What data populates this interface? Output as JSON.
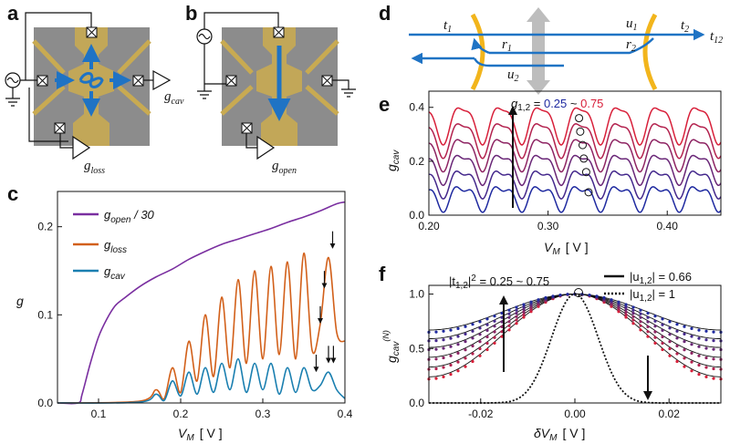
{
  "panel_labels": [
    "a",
    "b",
    "c",
    "d",
    "e",
    "f"
  ],
  "panel_a": {
    "label_cav": "g",
    "label_cav_sub": "cav",
    "label_loss": "g",
    "label_loss_sub": "loss"
  },
  "panel_b": {
    "label_open": "g",
    "label_open_sub": "open"
  },
  "panel_d": {
    "t1": "t",
    "t1_sub": "1",
    "t2": "t",
    "t2_sub": "2",
    "t12": "t",
    "t12_sub": "12",
    "r1": "r",
    "r1_sub": "1",
    "r2": "r",
    "r2_sub": "2",
    "u1": "u",
    "u1_sub": "1",
    "u2": "u",
    "u2_sub": "2"
  },
  "colors": {
    "purple": "#7a2fa0",
    "orange": "#d2601a",
    "teal": "#1a7fb0",
    "blue_low": "#1f2aa0",
    "red_high": "#d8203a",
    "gold": "#f2b51c",
    "arrow_blue": "#1f73c4",
    "chip_gray": "#8c8c8c",
    "gate_gold": "#c8aa52"
  },
  "chart_data": [
    {
      "panel": "c",
      "type": "line",
      "xlabel": "V",
      "xlabel_sub": "M",
      "xunit": "[ V ]",
      "ylabel": "g",
      "xlim": [
        0.05,
        0.4
      ],
      "ylim": [
        0,
        0.24
      ],
      "xticks": [
        "0.1",
        "0.2",
        "0.3",
        "0.4"
      ],
      "xtick_values": [
        0.1,
        0.2,
        0.3,
        0.4
      ],
      "yticks": [
        "0.0",
        "0.1",
        "0.2"
      ],
      "ytick_values": [
        0.0,
        0.1,
        0.2
      ],
      "legend_placement": "top-left",
      "series": [
        {
          "name": "g",
          "name_sub": "open",
          "name_suffix": " / 30",
          "color": "#7a2fa0",
          "x": [
            0.05,
            0.075,
            0.08,
            0.09,
            0.1,
            0.11,
            0.12,
            0.13,
            0.15,
            0.17,
            0.19,
            0.21,
            0.23,
            0.25,
            0.27,
            0.29,
            0.31,
            0.33,
            0.35,
            0.37,
            0.39,
            0.4
          ],
          "y": [
            0,
            0,
            0.01,
            0.045,
            0.075,
            0.095,
            0.11,
            0.118,
            0.132,
            0.143,
            0.152,
            0.163,
            0.172,
            0.18,
            0.186,
            0.192,
            0.198,
            0.205,
            0.211,
            0.218,
            0.226,
            0.228
          ]
        },
        {
          "name": "g",
          "name_sub": "loss",
          "name_suffix": "",
          "color": "#d2601a",
          "x": [
            0.05,
            0.15,
            0.17,
            0.18,
            0.19,
            0.2,
            0.21,
            0.22,
            0.23,
            0.24,
            0.25,
            0.26,
            0.27,
            0.28,
            0.29,
            0.3,
            0.31,
            0.32,
            0.33,
            0.34,
            0.35,
            0.36,
            0.37,
            0.38,
            0.39,
            0.4
          ],
          "y": [
            0,
            0.002,
            0.015,
            0.005,
            0.04,
            0.012,
            0.07,
            0.025,
            0.1,
            0.03,
            0.12,
            0.04,
            0.14,
            0.045,
            0.15,
            0.05,
            0.155,
            0.055,
            0.16,
            0.05,
            0.17,
            0.06,
            0.09,
            0.165,
            0.08,
            0.07
          ]
        },
        {
          "name": "g",
          "name_sub": "cav",
          "name_suffix": "",
          "color": "#1a7fb0",
          "x": [
            0.05,
            0.15,
            0.17,
            0.18,
            0.19,
            0.2,
            0.21,
            0.22,
            0.23,
            0.24,
            0.25,
            0.26,
            0.27,
            0.28,
            0.29,
            0.3,
            0.31,
            0.32,
            0.33,
            0.34,
            0.35,
            0.36,
            0.37,
            0.38,
            0.39,
            0.4
          ],
          "y": [
            0,
            0.001,
            0.01,
            0.003,
            0.025,
            0.008,
            0.035,
            0.01,
            0.04,
            0.012,
            0.045,
            0.015,
            0.05,
            0.012,
            0.045,
            0.015,
            0.045,
            0.01,
            0.04,
            0.012,
            0.04,
            0.015,
            0.02,
            0.035,
            0.015,
            0.005
          ]
        }
      ],
      "annotations": [
        {
          "type": "arrow",
          "x": 0.385,
          "y": 0.17
        },
        {
          "type": "arrow",
          "x": 0.375,
          "y": 0.125
        },
        {
          "type": "arrow",
          "x": 0.37,
          "y": 0.085
        },
        {
          "type": "arrow",
          "x": 0.38,
          "y": 0.04
        },
        {
          "type": "arrow",
          "x": 0.386,
          "y": 0.04
        },
        {
          "type": "arrow",
          "x": 0.365,
          "y": 0.03
        }
      ]
    },
    {
      "panel": "e",
      "type": "line",
      "xlabel": "V",
      "xlabel_sub": "M",
      "xunit": "[ V ]",
      "ylabel": "g",
      "ylabel_sub": "cav",
      "xlim": [
        0.2,
        0.445
      ],
      "ylim": [
        0,
        0.46
      ],
      "xticks": [
        "0.20",
        "0.30",
        "0.40"
      ],
      "xtick_values": [
        0.2,
        0.3,
        0.4
      ],
      "yticks": [
        "0.0",
        "0.2",
        "0.4"
      ],
      "ytick_values": [
        0.0,
        0.2,
        0.4
      ],
      "annotation_text_prefix": "g",
      "annotation_text_sub": "1,2",
      "annotation_text_eq": " = ",
      "annotation_low": "0.25",
      "annotation_sep": " ~ ",
      "annotation_high": "0.75",
      "series_params": [
        0.25,
        0.35,
        0.45,
        0.55,
        0.65,
        0.75
      ],
      "series_base": [
        0.03,
        0.08,
        0.13,
        0.18,
        0.23,
        0.28
      ],
      "series_amp": [
        0.08,
        0.09,
        0.1,
        0.11,
        0.12,
        0.13
      ],
      "period": 0.033,
      "phase": 0.0,
      "marker_points": [
        {
          "x": 0.334,
          "y": 0.085
        },
        {
          "x": 0.332,
          "y": 0.16
        },
        {
          "x": 0.33,
          "y": 0.21
        },
        {
          "x": 0.329,
          "y": 0.26
        },
        {
          "x": 0.327,
          "y": 0.31
        },
        {
          "x": 0.326,
          "y": 0.36
        }
      ]
    },
    {
      "panel": "f",
      "type": "line",
      "xlabel": "δV",
      "xlabel_sub": "M",
      "xunit": "[ V ]",
      "ylabel": "g",
      "ylabel_sub": "cav",
      "ylabel_sup": "(N)",
      "xlim": [
        -0.031,
        0.031
      ],
      "ylim": [
        0,
        1.08
      ],
      "xticks": [
        "-0.02",
        "0.00",
        "0.02"
      ],
      "xtick_values": [
        -0.02,
        0.0,
        0.02
      ],
      "yticks": [
        "0.0",
        "0.5",
        "1.0"
      ],
      "ytick_values": [
        0.0,
        0.5,
        1.0
      ],
      "annotation_text_prefix": "|t",
      "annotation_text_sub": "1,2",
      "annotation_text_mid": "|",
      "annotation_text_sup": "2",
      "annotation_text_eq": " = 0.25 ~ 0.75",
      "legend": [
        {
          "pre": "|u",
          "sub": "1,2",
          "post": "| = 0.66",
          "style": "solid"
        },
        {
          "pre": "|u",
          "sub": "1,2",
          "post": "| = 1",
          "style": "dotted"
        }
      ],
      "series_minima": [
        0.24,
        0.33,
        0.42,
        0.51,
        0.59,
        0.67
      ],
      "dotted_min": 0.0
    }
  ]
}
